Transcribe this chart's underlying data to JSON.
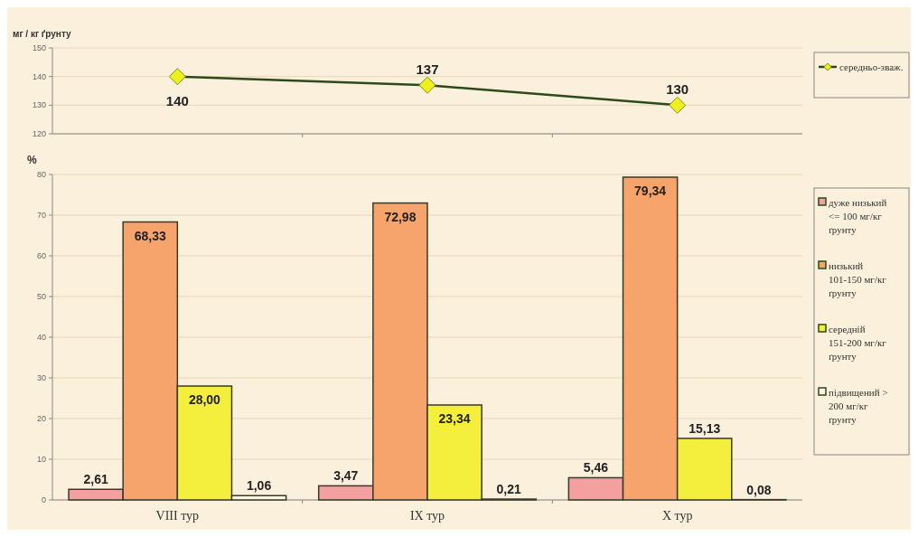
{
  "chart_data": [
    {
      "type": "line",
      "ylabel": "мг / кг ґрунту",
      "categories": [
        null,
        null,
        null
      ],
      "series": [
        {
          "name": "середньо-зваж.",
          "color": "#2d4a1a",
          "values": [
            140,
            137,
            130
          ]
        }
      ],
      "ylim": [
        120,
        150
      ],
      "yticks": [
        120,
        130,
        140,
        150
      ],
      "grid": "y",
      "legend": "right",
      "marker": "diamond",
      "data_labels": true,
      "tick_labels": "y"
    },
    {
      "type": "bar",
      "ylabel": "%",
      "categories": [
        "VIII тур",
        "IX тур",
        "X тур"
      ],
      "series": [
        {
          "name": "дуже низький <= 100 мг/кг ґрунту",
          "color": "#f4a0a0",
          "values": [
            2.61,
            3.47,
            5.46
          ],
          "value_labels": [
            "2,61",
            "3,47",
            "5,46"
          ]
        },
        {
          "name": "низький 101-150 мг/кг ґрунту",
          "color": "#f6a46c",
          "values": [
            68.33,
            72.98,
            79.34
          ],
          "value_labels": [
            "68,33",
            "72,98",
            "79,34"
          ]
        },
        {
          "name": "середній 151-200 мг/кг ґрунту",
          "color": "#f4ee3c",
          "values": [
            28.0,
            23.34,
            15.13
          ],
          "value_labels": [
            "28,00",
            "23,34",
            "15,13"
          ]
        },
        {
          "name": "підвищений > 200 мг/кг ґрунту",
          "color": "#fdf6e3",
          "values": [
            1.06,
            0.21,
            0.08
          ],
          "value_labels": [
            "1,06",
            "0,21",
            "0,08"
          ]
        }
      ],
      "ylim": [
        0,
        80
      ],
      "yticks": [
        0,
        10,
        20,
        30,
        40,
        50,
        60,
        70,
        80
      ],
      "grid": "y",
      "legend": "right"
    }
  ]
}
